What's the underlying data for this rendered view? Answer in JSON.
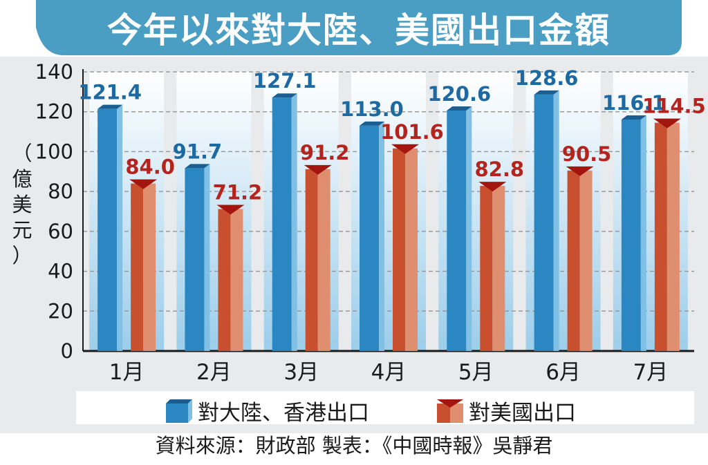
{
  "chart_data": {
    "type": "bar",
    "title": "今年以來對大陸、美國出口金額",
    "ylabel_chars": [
      "（",
      "億",
      "美",
      "元",
      "）"
    ],
    "ylim": [
      0,
      140
    ],
    "yticks": [
      0,
      20,
      40,
      60,
      80,
      100,
      120,
      140
    ],
    "categories": [
      "1月",
      "2月",
      "3月",
      "4月",
      "5月",
      "6月",
      "7月"
    ],
    "series": [
      {
        "name": "對大陸、香港出口",
        "color": "#2a87c2",
        "values": [
          121.4,
          91.7,
          127.1,
          113.0,
          120.6,
          128.6,
          116.1
        ],
        "labels": [
          "121.4",
          "91.7",
          "127.1",
          "113.0",
          "120.6",
          "128.6",
          "116.1"
        ]
      },
      {
        "name": "對美國出口",
        "color": "#c8502f",
        "values": [
          84.0,
          71.2,
          91.2,
          101.6,
          82.8,
          90.5,
          114.5
        ],
        "labels": [
          "84.0",
          "71.2",
          "91.2",
          "101.6",
          "82.8",
          "90.5",
          "114.5"
        ]
      }
    ],
    "grid": true,
    "legend_position": "bottom"
  },
  "source_text": "資料來源：財政部  製表：《中國時報》吳靜君",
  "colors": {
    "banner": "#4a9ec4",
    "china_bar": "#2a87c2",
    "china_bar_side": "#7fc0e4",
    "china_cap": "#1b5f92",
    "usa_bar": "#c8502f",
    "usa_bar_side": "#e08e70",
    "usa_cap": "#a3160f",
    "plot_bg": "#e9eaeb",
    "grid": "#9a9a9a",
    "column_top": "#ffffff",
    "column_bottom": "#9ccdea"
  }
}
